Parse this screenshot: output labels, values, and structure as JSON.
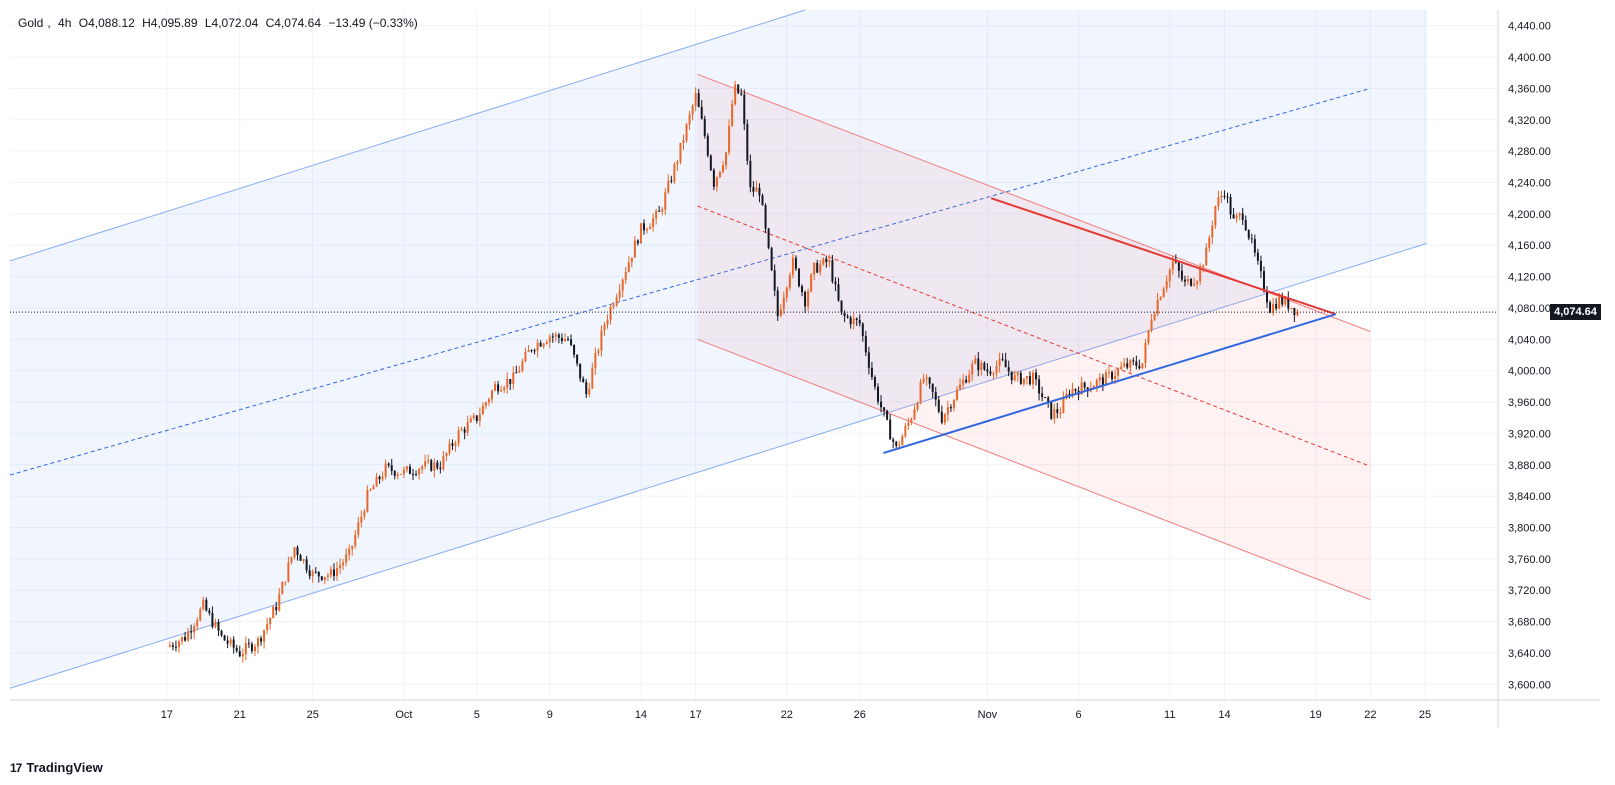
{
  "header": {
    "symbol": "Gold",
    "interval": "4h",
    "open": "O4,088.12",
    "high": "H4,095.89",
    "low": "L4,072.04",
    "close": "C4,074.64",
    "change": "−13.49 (−0.33%)"
  },
  "brand": {
    "logo": "17",
    "name": "TradingView"
  },
  "last_price_label": "4,074.64",
  "colors": {
    "up": "#e8672a",
    "down": "#131722",
    "channel_blue": "#5b8def",
    "channel_red": "#f08080",
    "resistance": "#e53935",
    "support": "#3167e0"
  },
  "chart_data": {
    "type": "candlestick",
    "y_ticks": [
      "4,440.00",
      "4,400.00",
      "4,360.00",
      "4,320.00",
      "4,280.00",
      "4,240.00",
      "4,200.00",
      "4,160.00",
      "4,120.00",
      "4,080.00",
      "4,040.00",
      "4,000.00",
      "3,960.00",
      "3,920.00",
      "3,880.00",
      "3,840.00",
      "3,800.00",
      "3,760.00",
      "3,720.00",
      "3,680.00",
      "3,640.00",
      "3,600.00"
    ],
    "ylim": [
      3580,
      4460
    ],
    "x_ticks": [
      {
        "label": "17",
        "day": 0
      },
      {
        "label": "21",
        "day": 4
      },
      {
        "label": "25",
        "day": 8
      },
      {
        "label": "Oct",
        "day": 13
      },
      {
        "label": "5",
        "day": 17
      },
      {
        "label": "9",
        "day": 21
      },
      {
        "label": "14",
        "day": 26
      },
      {
        "label": "17",
        "day": 29
      },
      {
        "label": "22",
        "day": 34
      },
      {
        "label": "26",
        "day": 38
      },
      {
        "label": "Nov",
        "day": 45
      },
      {
        "label": "6",
        "day": 50
      },
      {
        "label": "11",
        "day": 55
      },
      {
        "label": "14",
        "day": 58
      },
      {
        "label": "19",
        "day": 63
      },
      {
        "label": "22",
        "day": 66
      },
      {
        "label": "25",
        "day": 69
      }
    ],
    "price_path": [
      [
        0,
        3648
      ],
      [
        1,
        3660
      ],
      [
        2,
        3700
      ],
      [
        3,
        3660
      ],
      [
        4,
        3640
      ],
      [
        5,
        3655
      ],
      [
        6,
        3700
      ],
      [
        7,
        3775
      ],
      [
        8,
        3740
      ],
      [
        9,
        3740
      ],
      [
        10,
        3765
      ],
      [
        11,
        3840
      ],
      [
        12,
        3875
      ],
      [
        13,
        3870
      ],
      [
        14,
        3878
      ],
      [
        15,
        3880
      ],
      [
        16,
        3920
      ],
      [
        17,
        3940
      ],
      [
        18,
        3980
      ],
      [
        19,
        3990
      ],
      [
        20,
        4030
      ],
      [
        21,
        4045
      ],
      [
        22,
        4040
      ],
      [
        23,
        3970
      ],
      [
        24,
        4060
      ],
      [
        25,
        4120
      ],
      [
        26,
        4180
      ],
      [
        27,
        4200
      ],
      [
        28,
        4270
      ],
      [
        29,
        4350
      ],
      [
        29.5,
        4300
      ],
      [
        30,
        4240
      ],
      [
        30.7,
        4280
      ],
      [
        31.1,
        4360
      ],
      [
        31.5,
        4350
      ],
      [
        32,
        4230
      ],
      [
        32.5,
        4230
      ],
      [
        33.5,
        4070
      ],
      [
        34.3,
        4140
      ],
      [
        35,
        4090
      ],
      [
        35.5,
        4130
      ],
      [
        36.3,
        4140
      ],
      [
        37,
        4070
      ],
      [
        38,
        4060
      ],
      [
        38.8,
        3980
      ],
      [
        39.5,
        3930
      ],
      [
        40,
        3900
      ],
      [
        40.8,
        3940
      ],
      [
        41.5,
        3990
      ],
      [
        42,
        3970
      ],
      [
        42.5,
        3940
      ],
      [
        43.5,
        3980
      ],
      [
        44.3,
        4010
      ],
      [
        45,
        4000
      ],
      [
        45.8,
        4010
      ],
      [
        46.5,
        3990
      ],
      [
        47.5,
        3990
      ],
      [
        48.5,
        3945
      ],
      [
        49,
        3950
      ],
      [
        49.5,
        3975
      ],
      [
        50.5,
        3980
      ],
      [
        51.5,
        3990
      ],
      [
        52.5,
        4005
      ],
      [
        53.5,
        4010
      ],
      [
        54,
        4070
      ],
      [
        54.5,
        4100
      ],
      [
        55.2,
        4140
      ],
      [
        55.8,
        4110
      ],
      [
        56.5,
        4120
      ],
      [
        57,
        4150
      ],
      [
        57.5,
        4210
      ],
      [
        58,
        4230
      ],
      [
        58.5,
        4190
      ],
      [
        59,
        4200
      ],
      [
        59.5,
        4160
      ],
      [
        60,
        4120
      ],
      [
        60.5,
        4080
      ],
      [
        61,
        4090
      ],
      [
        61.5,
        4085
      ],
      [
        62,
        4075
      ]
    ],
    "x_day_range": [
      -8.6,
      73
    ],
    "drawings": {
      "blue_channel": {
        "upper": [
          [
            -8.6,
            4140
          ],
          [
            35,
            4460
          ]
        ],
        "lower": [
          [
            -8.6,
            3595
          ],
          [
            58.5,
            4085
          ]
        ],
        "mid": [
          [
            -8.6,
            3867
          ],
          [
            66,
            4360
          ]
        ]
      },
      "red_channel": {
        "upper": [
          [
            29.1,
            4378
          ],
          [
            66,
            4050
          ]
        ],
        "lower": [
          [
            29.1,
            4040
          ],
          [
            66,
            3708
          ]
        ],
        "mid": [
          [
            29.1,
            4210
          ],
          [
            66,
            3878
          ]
        ]
      },
      "resistance": [
        [
          45.2,
          4220
        ],
        [
          64.1,
          4072
        ]
      ],
      "support": [
        [
          39.3,
          3895
        ],
        [
          64.1,
          4072
        ]
      ]
    }
  }
}
